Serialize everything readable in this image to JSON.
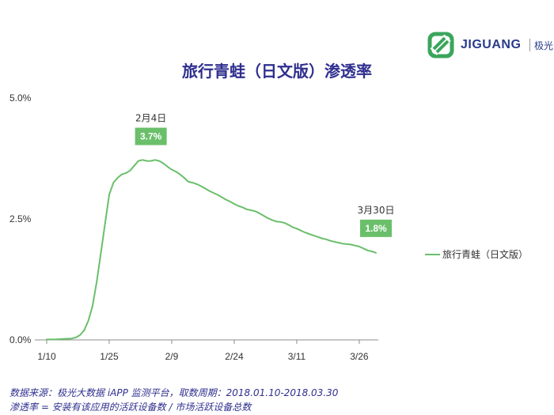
{
  "brand": {
    "logo_text": "JIGUANG",
    "logo_cn": "极光",
    "logo_color": "#3aa55c"
  },
  "chart_data": {
    "type": "line",
    "title": "旅行青蛙（日文版）渗透率",
    "xlabel": "",
    "ylabel": "",
    "x_ticks": [
      "1/10",
      "1/25",
      "2/9",
      "2/24",
      "3/11",
      "3/26"
    ],
    "y_ticks": [
      "0.0%",
      "2.5%",
      "5.0%"
    ],
    "ylim": [
      0,
      5.0
    ],
    "y_unit": "%",
    "grid": false,
    "legend": {
      "position": "right",
      "entries": [
        "旅行青蛙（日文版）"
      ]
    },
    "line_color": "#6abf6a",
    "series": [
      {
        "name": "旅行青蛙（日文版）",
        "x": [
          "1/10",
          "1/12",
          "1/14",
          "1/16",
          "1/17",
          "1/18",
          "1/19",
          "1/20",
          "1/21",
          "1/22",
          "1/23",
          "1/24",
          "1/25",
          "1/26",
          "1/27",
          "1/28",
          "1/29",
          "1/30",
          "1/31",
          "2/1",
          "2/2",
          "2/3",
          "2/4",
          "2/5",
          "2/6",
          "2/7",
          "2/8",
          "2/9",
          "2/10",
          "2/11",
          "2/12",
          "2/13",
          "2/14",
          "2/15",
          "2/16",
          "2/17",
          "2/18",
          "2/19",
          "2/20",
          "2/21",
          "2/22",
          "2/23",
          "2/24",
          "2/25",
          "2/26",
          "2/27",
          "2/28",
          "3/1",
          "3/2",
          "3/3",
          "3/4",
          "3/5",
          "3/6",
          "3/7",
          "3/8",
          "3/9",
          "3/10",
          "3/11",
          "3/12",
          "3/13",
          "3/14",
          "3/15",
          "3/16",
          "3/17",
          "3/18",
          "3/19",
          "3/20",
          "3/21",
          "3/22",
          "3/23",
          "3/24",
          "3/25",
          "3/26",
          "3/27",
          "3/28",
          "3/29",
          "3/30"
        ],
        "values": [
          0.01,
          0.01,
          0.02,
          0.03,
          0.05,
          0.1,
          0.2,
          0.4,
          0.7,
          1.2,
          1.8,
          2.4,
          3.0,
          3.25,
          3.35,
          3.42,
          3.45,
          3.5,
          3.6,
          3.7,
          3.72,
          3.7,
          3.7,
          3.72,
          3.7,
          3.65,
          3.58,
          3.52,
          3.48,
          3.42,
          3.35,
          3.27,
          3.25,
          3.22,
          3.18,
          3.13,
          3.08,
          3.04,
          3.0,
          2.95,
          2.9,
          2.86,
          2.81,
          2.77,
          2.74,
          2.7,
          2.68,
          2.66,
          2.62,
          2.57,
          2.52,
          2.48,
          2.45,
          2.44,
          2.42,
          2.38,
          2.33,
          2.3,
          2.26,
          2.22,
          2.19,
          2.16,
          2.13,
          2.1,
          2.08,
          2.05,
          2.03,
          2.01,
          1.99,
          1.98,
          1.97,
          1.95,
          1.93,
          1.89,
          1.85,
          1.83,
          1.8
        ]
      }
    ],
    "annotations": [
      {
        "date": "2月4日",
        "label": "3.7%",
        "x": "2/4",
        "y": 3.7
      },
      {
        "date": "3月30日",
        "label": "1.8%",
        "x": "3/30",
        "y": 1.8
      }
    ],
    "annotation_bg": "#6abf6a"
  },
  "footnotes": {
    "line1": "数据来源：极光大数据 iAPP 监测平台，取数周期：2018.01.10-2018.03.30",
    "line2": "渗透率 = 安装有该应用的活跃设备数 / 市场活跃设备总数"
  }
}
